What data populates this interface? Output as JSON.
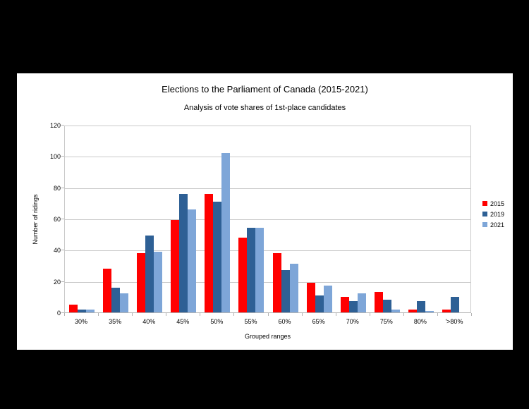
{
  "colors": {
    "canvas_background": "#000000",
    "panel_background": "#ffffff",
    "grid": "#c9c9c9",
    "axis": "#b3b3b3",
    "text": "#000000"
  },
  "chart_data": {
    "type": "bar",
    "title": "Elections to the Parliament of Canada (2015-2021)",
    "subtitle": "Analysis of vote shares of 1st-place candidates",
    "xlabel": "Grouped ranges",
    "ylabel": "Number of ridings",
    "categories": [
      "30%",
      "35%",
      "40%",
      "45%",
      "50%",
      "55%",
      "60%",
      "65%",
      "70%",
      "75%",
      "80%",
      "'>80%"
    ],
    "series": [
      {
        "name": "2015",
        "color": "#ff0000",
        "values": [
          5,
          28,
          38,
          59,
          76,
          48,
          38,
          19,
          10,
          13,
          2,
          2
        ]
      },
      {
        "name": "2019",
        "color": "#2e6095",
        "values": [
          2,
          16,
          49,
          76,
          71,
          54,
          27,
          11,
          7,
          8,
          7,
          10
        ]
      },
      {
        "name": "2021",
        "color": "#7ea6d8",
        "values": [
          2,
          12,
          39,
          66,
          102,
          54,
          31,
          17,
          12,
          2,
          1,
          0
        ]
      }
    ],
    "ylim": [
      0,
      120
    ],
    "yticks": [
      0,
      20,
      40,
      60,
      80,
      100,
      120
    ],
    "grid": true,
    "legend_position": "right"
  }
}
